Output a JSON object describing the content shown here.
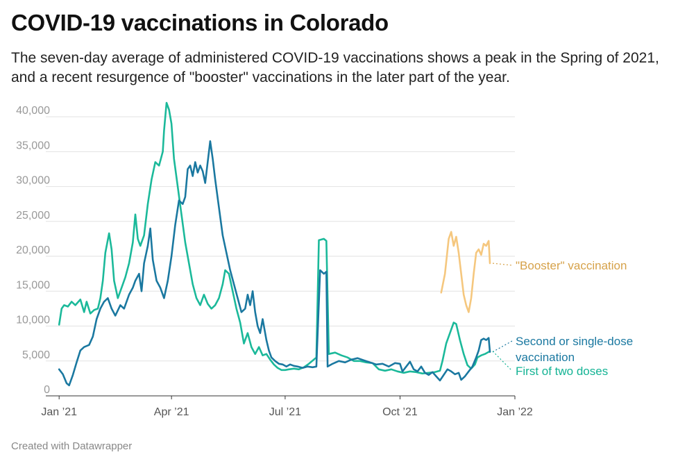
{
  "title": "COVID-19 vaccinations in Colorado",
  "subtitle": "The seven-day average of administered COVID-19 vaccinations shows a peak in the Spring of 2021, and a recent resurgence of \"booster\" vaccinations in the later part of the year.",
  "footer": "Created with Datawrapper",
  "chart_data": {
    "type": "line",
    "title": "COVID-19 vaccinations in Colorado",
    "xlabel": "",
    "ylabel": "",
    "x_range": [
      "2020-12-28",
      "2022-01-01"
    ],
    "ylim": [
      0,
      42000
    ],
    "y_ticks": [
      0,
      5000,
      10000,
      15000,
      20000,
      25000,
      30000,
      35000,
      40000
    ],
    "y_tick_labels": [
      "0",
      "5,000",
      "10,000",
      "15,000",
      "20,000",
      "25,000",
      "30,000",
      "35,000",
      "40,000"
    ],
    "x_ticks": [
      "2021-01-01",
      "2021-04-01",
      "2021-07-01",
      "2021-10-01",
      "2022-01-01"
    ],
    "x_tick_labels": [
      "Jan ’21",
      "Apr ’21",
      "Jul ’21",
      "Oct ’21",
      "Jan ’22"
    ],
    "grid": true,
    "legend": "direct labels at right",
    "series": [
      {
        "name": "\"Booster\" vaccination",
        "color": "#f5c77e",
        "label_color": "#d6a24a",
        "points": [
          [
            "2021-11-03",
            14800
          ],
          [
            "2021-11-06",
            17500
          ],
          [
            "2021-11-09",
            22500
          ],
          [
            "2021-11-11",
            23500
          ],
          [
            "2021-11-13",
            21500
          ],
          [
            "2021-11-15",
            22800
          ],
          [
            "2021-11-17",
            20500
          ],
          [
            "2021-11-19",
            17500
          ],
          [
            "2021-11-21",
            14500
          ],
          [
            "2021-11-23",
            13000
          ],
          [
            "2021-11-25",
            12000
          ],
          [
            "2021-11-27",
            14000
          ],
          [
            "2021-11-29",
            17500
          ],
          [
            "2021-12-01",
            20500
          ],
          [
            "2021-12-03",
            21000
          ],
          [
            "2021-12-05",
            20200
          ],
          [
            "2021-12-07",
            21800
          ],
          [
            "2021-12-09",
            21500
          ],
          [
            "2021-12-11",
            22200
          ],
          [
            "2021-12-12",
            19000
          ]
        ]
      },
      {
        "name": "Second or single-dose vaccination",
        "color": "#1a78a0",
        "label_color": "#1a78a0",
        "points": [
          [
            "2021-01-01",
            3800
          ],
          [
            "2021-01-04",
            3100
          ],
          [
            "2021-01-07",
            1800
          ],
          [
            "2021-01-09",
            1500
          ],
          [
            "2021-01-12",
            3000
          ],
          [
            "2021-01-15",
            4800
          ],
          [
            "2021-01-18",
            6500
          ],
          [
            "2021-01-21",
            7000
          ],
          [
            "2021-01-25",
            7300
          ],
          [
            "2021-01-28",
            8500
          ],
          [
            "2021-01-31",
            11000
          ],
          [
            "2021-02-03",
            12500
          ],
          [
            "2021-02-06",
            13500
          ],
          [
            "2021-02-09",
            14000
          ],
          [
            "2021-02-12",
            12500
          ],
          [
            "2021-02-15",
            11500
          ],
          [
            "2021-02-19",
            13000
          ],
          [
            "2021-02-22",
            12500
          ],
          [
            "2021-02-26",
            14500
          ],
          [
            "2021-03-01",
            15500
          ],
          [
            "2021-03-03",
            16500
          ],
          [
            "2021-03-06",
            17500
          ],
          [
            "2021-03-08",
            15000
          ],
          [
            "2021-03-10",
            19000
          ],
          [
            "2021-03-13",
            21500
          ],
          [
            "2021-03-15",
            24000
          ],
          [
            "2021-03-17",
            19500
          ],
          [
            "2021-03-20",
            16500
          ],
          [
            "2021-03-23",
            15500
          ],
          [
            "2021-03-26",
            14000
          ],
          [
            "2021-03-29",
            16500
          ],
          [
            "2021-04-01",
            20000
          ],
          [
            "2021-04-04",
            24500
          ],
          [
            "2021-04-07",
            28000
          ],
          [
            "2021-04-10",
            27500
          ],
          [
            "2021-04-12",
            28500
          ],
          [
            "2021-04-14",
            32500
          ],
          [
            "2021-04-16",
            33000
          ],
          [
            "2021-04-18",
            31500
          ],
          [
            "2021-04-20",
            33500
          ],
          [
            "2021-04-22",
            32000
          ],
          [
            "2021-04-24",
            33000
          ],
          [
            "2021-04-26",
            32200
          ],
          [
            "2021-04-28",
            30500
          ],
          [
            "2021-04-30",
            33500
          ],
          [
            "2021-05-02",
            36500
          ],
          [
            "2021-05-04",
            34000
          ],
          [
            "2021-05-06",
            31000
          ],
          [
            "2021-05-09",
            27000
          ],
          [
            "2021-05-12",
            23000
          ],
          [
            "2021-05-15",
            20500
          ],
          [
            "2021-05-18",
            18000
          ],
          [
            "2021-05-21",
            16000
          ],
          [
            "2021-05-24",
            14000
          ],
          [
            "2021-05-27",
            12000
          ],
          [
            "2021-05-30",
            12500
          ],
          [
            "2021-06-01",
            14500
          ],
          [
            "2021-06-03",
            13000
          ],
          [
            "2021-06-05",
            15000
          ],
          [
            "2021-06-07",
            12000
          ],
          [
            "2021-06-09",
            10000
          ],
          [
            "2021-06-11",
            9000
          ],
          [
            "2021-06-13",
            11000
          ],
          [
            "2021-06-16",
            8000
          ],
          [
            "2021-06-18",
            6500
          ],
          [
            "2021-06-20",
            5500
          ],
          [
            "2021-06-23",
            5000
          ],
          [
            "2021-06-26",
            4600
          ],
          [
            "2021-06-29",
            4500
          ],
          [
            "2021-07-02",
            4200
          ],
          [
            "2021-07-05",
            4500
          ],
          [
            "2021-07-08",
            4300
          ],
          [
            "2021-07-11",
            4200
          ],
          [
            "2021-07-15",
            4000
          ],
          [
            "2021-07-19",
            4200
          ],
          [
            "2021-07-23",
            4100
          ],
          [
            "2021-07-26",
            4200
          ],
          [
            "2021-07-29",
            18000
          ],
          [
            "2021-08-01",
            17500
          ],
          [
            "2021-08-03",
            17800
          ],
          [
            "2021-08-04",
            4200
          ],
          [
            "2021-08-08",
            4600
          ],
          [
            "2021-08-13",
            5000
          ],
          [
            "2021-08-18",
            4800
          ],
          [
            "2021-08-23",
            5200
          ],
          [
            "2021-08-28",
            5400
          ],
          [
            "2021-09-02",
            5100
          ],
          [
            "2021-09-07",
            4800
          ],
          [
            "2021-09-12",
            4500
          ],
          [
            "2021-09-17",
            4600
          ],
          [
            "2021-09-22",
            4200
          ],
          [
            "2021-09-27",
            4700
          ],
          [
            "2021-10-01",
            4600
          ],
          [
            "2021-10-03",
            3500
          ],
          [
            "2021-10-06",
            4200
          ],
          [
            "2021-10-09",
            4900
          ],
          [
            "2021-10-12",
            3800
          ],
          [
            "2021-10-15",
            3500
          ],
          [
            "2021-10-18",
            4200
          ],
          [
            "2021-10-21",
            3300
          ],
          [
            "2021-10-24",
            3000
          ],
          [
            "2021-10-27",
            3400
          ],
          [
            "2021-10-30",
            2800
          ],
          [
            "2021-11-02",
            2200
          ],
          [
            "2021-11-05",
            3000
          ],
          [
            "2021-11-08",
            3800
          ],
          [
            "2021-11-11",
            3500
          ],
          [
            "2021-11-14",
            3100
          ],
          [
            "2021-11-17",
            3300
          ],
          [
            "2021-11-19",
            2300
          ],
          [
            "2021-11-22",
            2800
          ],
          [
            "2021-11-25",
            3500
          ],
          [
            "2021-11-28",
            4200
          ],
          [
            "2021-12-01",
            5500
          ],
          [
            "2021-12-03",
            6500
          ],
          [
            "2021-12-05",
            8000
          ],
          [
            "2021-12-07",
            8200
          ],
          [
            "2021-12-09",
            8000
          ],
          [
            "2021-12-11",
            8300
          ],
          [
            "2021-12-12",
            6300
          ]
        ]
      },
      {
        "name": "First of two doses",
        "color": "#1bb99a",
        "label_color": "#13b394",
        "points": [
          [
            "2021-01-01",
            10200
          ],
          [
            "2021-01-03",
            12500
          ],
          [
            "2021-01-05",
            13000
          ],
          [
            "2021-01-08",
            12800
          ],
          [
            "2021-01-11",
            13500
          ],
          [
            "2021-01-14",
            13000
          ],
          [
            "2021-01-18",
            13800
          ],
          [
            "2021-01-21",
            12000
          ],
          [
            "2021-01-23",
            13500
          ],
          [
            "2021-01-26",
            11800
          ],
          [
            "2021-01-29",
            12300
          ],
          [
            "2021-02-01",
            12500
          ],
          [
            "2021-02-03",
            14000
          ],
          [
            "2021-02-05",
            16500
          ],
          [
            "2021-02-07",
            20500
          ],
          [
            "2021-02-10",
            23300
          ],
          [
            "2021-02-12",
            21000
          ],
          [
            "2021-02-14",
            16500
          ],
          [
            "2021-02-17",
            14000
          ],
          [
            "2021-02-20",
            15500
          ],
          [
            "2021-02-23",
            17000
          ],
          [
            "2021-02-26",
            19000
          ],
          [
            "2021-03-01",
            22000
          ],
          [
            "2021-03-03",
            26000
          ],
          [
            "2021-03-05",
            22500
          ],
          [
            "2021-03-07",
            21500
          ],
          [
            "2021-03-10",
            23000
          ],
          [
            "2021-03-13",
            27500
          ],
          [
            "2021-03-16",
            31000
          ],
          [
            "2021-03-19",
            33500
          ],
          [
            "2021-03-22",
            33000
          ],
          [
            "2021-03-25",
            35000
          ],
          [
            "2021-03-26",
            38000
          ],
          [
            "2021-03-28",
            42000
          ],
          [
            "2021-03-30",
            41000
          ],
          [
            "2021-04-01",
            39000
          ],
          [
            "2021-04-03",
            34000
          ],
          [
            "2021-04-06",
            30000
          ],
          [
            "2021-04-09",
            26000
          ],
          [
            "2021-04-12",
            22000
          ],
          [
            "2021-04-15",
            19000
          ],
          [
            "2021-04-18",
            16000
          ],
          [
            "2021-04-21",
            14000
          ],
          [
            "2021-04-24",
            13000
          ],
          [
            "2021-04-27",
            14500
          ],
          [
            "2021-04-30",
            13200
          ],
          [
            "2021-05-03",
            12500
          ],
          [
            "2021-05-06",
            13000
          ],
          [
            "2021-05-09",
            14000
          ],
          [
            "2021-05-12",
            16000
          ],
          [
            "2021-05-14",
            18000
          ],
          [
            "2021-05-17",
            17500
          ],
          [
            "2021-05-20",
            15000
          ],
          [
            "2021-05-23",
            12500
          ],
          [
            "2021-05-26",
            10500
          ],
          [
            "2021-05-29",
            7500
          ],
          [
            "2021-06-01",
            9000
          ],
          [
            "2021-06-04",
            7000
          ],
          [
            "2021-06-07",
            6000
          ],
          [
            "2021-06-10",
            7000
          ],
          [
            "2021-06-13",
            5800
          ],
          [
            "2021-06-16",
            6000
          ],
          [
            "2021-06-19",
            5200
          ],
          [
            "2021-06-22",
            4500
          ],
          [
            "2021-06-25",
            4000
          ],
          [
            "2021-06-28",
            3700
          ],
          [
            "2021-07-01",
            3700
          ],
          [
            "2021-07-04",
            3800
          ],
          [
            "2021-07-08",
            3900
          ],
          [
            "2021-07-12",
            3800
          ],
          [
            "2021-07-16",
            4100
          ],
          [
            "2021-07-20",
            4600
          ],
          [
            "2021-07-24",
            5200
          ],
          [
            "2021-07-26",
            5500
          ],
          [
            "2021-07-28",
            22300
          ],
          [
            "2021-08-01",
            22500
          ],
          [
            "2021-08-03",
            22200
          ],
          [
            "2021-08-05",
            6000
          ],
          [
            "2021-08-10",
            6200
          ],
          [
            "2021-08-15",
            5800
          ],
          [
            "2021-08-20",
            5500
          ],
          [
            "2021-08-25",
            5000
          ],
          [
            "2021-08-30",
            5000
          ],
          [
            "2021-09-04",
            4800
          ],
          [
            "2021-09-09",
            4700
          ],
          [
            "2021-09-14",
            3800
          ],
          [
            "2021-09-19",
            3600
          ],
          [
            "2021-09-24",
            3800
          ],
          [
            "2021-09-29",
            3500
          ],
          [
            "2021-10-04",
            3300
          ],
          [
            "2021-10-09",
            3500
          ],
          [
            "2021-10-14",
            3400
          ],
          [
            "2021-10-19",
            3200
          ],
          [
            "2021-10-24",
            3300
          ],
          [
            "2021-10-29",
            3400
          ],
          [
            "2021-11-02",
            3600
          ],
          [
            "2021-11-04",
            5000
          ],
          [
            "2021-11-07",
            7500
          ],
          [
            "2021-11-10",
            9000
          ],
          [
            "2021-11-13",
            10500
          ],
          [
            "2021-11-15",
            10300
          ],
          [
            "2021-11-18",
            8000
          ],
          [
            "2021-11-21",
            6000
          ],
          [
            "2021-11-24",
            4400
          ],
          [
            "2021-11-27",
            3900
          ],
          [
            "2021-11-30",
            4500
          ],
          [
            "2021-12-02",
            5500
          ],
          [
            "2021-12-05",
            5800
          ],
          [
            "2021-12-08",
            6000
          ],
          [
            "2021-12-12",
            6400
          ]
        ]
      }
    ]
  }
}
